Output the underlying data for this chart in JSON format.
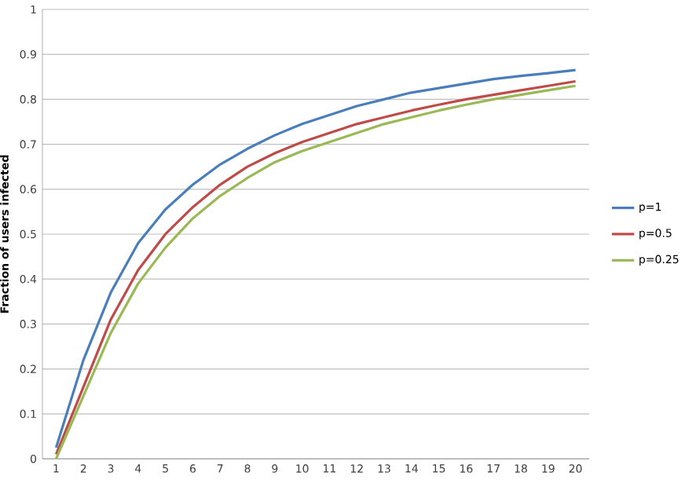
{
  "chart_data": {
    "type": "line",
    "ylabel": "Fraction of users infected",
    "categories": [
      "1",
      "2",
      "3",
      "4",
      "5",
      "6",
      "7",
      "8",
      "9",
      "10",
      "11",
      "12",
      "13",
      "14",
      "15",
      "16",
      "17",
      "18",
      "19",
      "20"
    ],
    "series": [
      {
        "name": "p=1",
        "color": "#4a7ebb",
        "values": [
          0.025,
          0.22,
          0.37,
          0.48,
          0.555,
          0.61,
          0.655,
          0.69,
          0.72,
          0.745,
          0.765,
          0.785,
          0.8,
          0.815,
          0.825,
          0.835,
          0.845,
          0.852,
          0.858,
          0.865
        ]
      },
      {
        "name": "p=0.5",
        "color": "#be4b48",
        "values": [
          0.01,
          0.16,
          0.31,
          0.42,
          0.5,
          0.56,
          0.61,
          0.65,
          0.68,
          0.705,
          0.725,
          0.745,
          0.76,
          0.775,
          0.788,
          0.8,
          0.81,
          0.82,
          0.83,
          0.84
        ]
      },
      {
        "name": "p=0.25",
        "color": "#98b954",
        "values": [
          0.0,
          0.14,
          0.28,
          0.39,
          0.47,
          0.535,
          0.585,
          0.625,
          0.66,
          0.685,
          0.705,
          0.725,
          0.745,
          0.76,
          0.775,
          0.788,
          0.8,
          0.81,
          0.82,
          0.83
        ]
      }
    ],
    "ylim": [
      0,
      1
    ],
    "yticks": [
      0,
      0.1,
      0.2,
      0.3,
      0.4,
      0.5,
      0.6,
      0.7,
      0.8,
      0.9,
      1
    ],
    "grid": "y",
    "legend": "right",
    "marker": "none",
    "line_style": "solid"
  }
}
